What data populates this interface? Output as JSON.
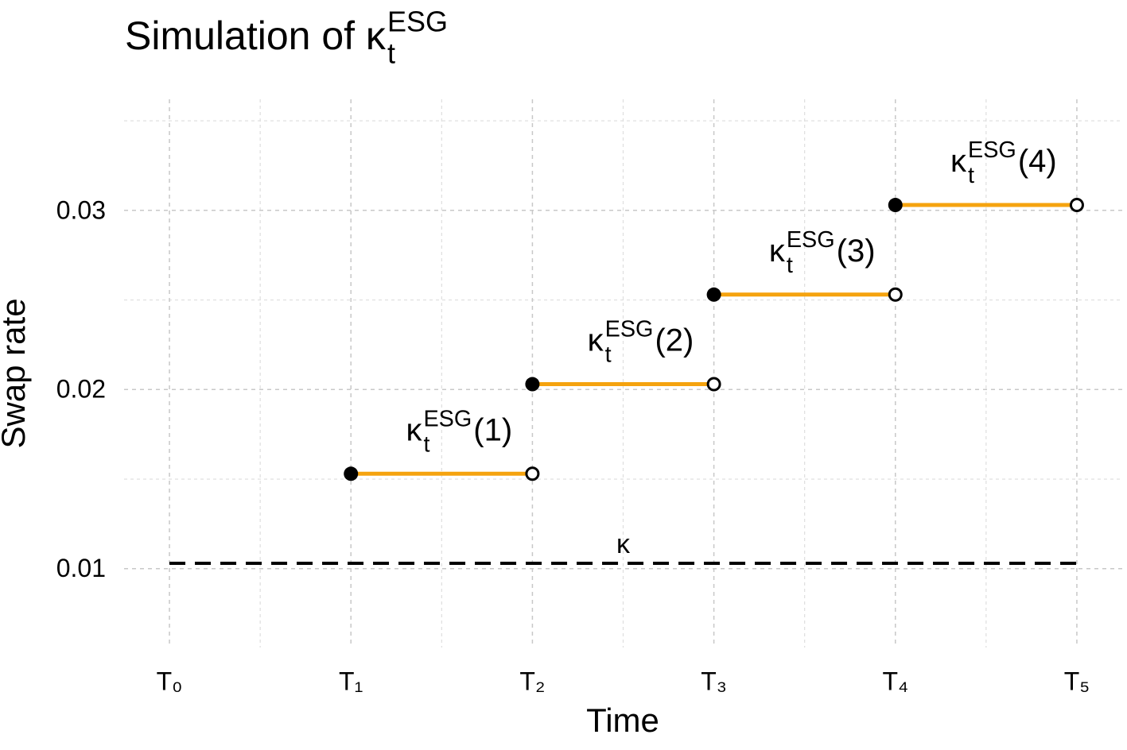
{
  "chart_data": {
    "type": "segment",
    "title": {
      "text": "Simulation of κ",
      "sub": "t",
      "sup": "ESG"
    },
    "xlabel": "Time",
    "ylabel": "Swap rate",
    "xlim": [
      -0.25,
      5.25
    ],
    "ylim": [
      0.0056,
      0.0362
    ],
    "xticks": [
      {
        "value": 0,
        "label": "T₀"
      },
      {
        "value": 1,
        "label": "T₁"
      },
      {
        "value": 2,
        "label": "T₂"
      },
      {
        "value": 3,
        "label": "T₃"
      },
      {
        "value": 4,
        "label": "T₄"
      },
      {
        "value": 5,
        "label": "T₅"
      }
    ],
    "xminor": [
      0.5,
      1.5,
      2.5,
      3.5,
      4.5
    ],
    "yticks": [
      0.01,
      0.02,
      0.03
    ],
    "yminor": [
      0.015,
      0.025,
      0.035
    ],
    "grid": true,
    "series": [
      {
        "color": "#f5a30f",
        "x_start": [
          1,
          2,
          3,
          4
        ],
        "x_end": [
          2,
          3,
          4,
          5
        ],
        "values": [
          0.0153,
          0.0203,
          0.0253,
          0.0303
        ],
        "labels": [
          {
            "base": "κ",
            "sub": "t",
            "sup": "ESG",
            "suffix": "(1)"
          },
          {
            "base": "κ",
            "sub": "t",
            "sup": "ESG",
            "suffix": "(2)"
          },
          {
            "base": "κ",
            "sub": "t",
            "sup": "ESG",
            "suffix": "(3)"
          },
          {
            "base": "κ",
            "sub": "t",
            "sup": "ESG",
            "suffix": "(4)"
          }
        ]
      }
    ],
    "reference": {
      "label": "κ",
      "value": 0.0103,
      "x_start": 0,
      "x_end": 5,
      "color": "#000000"
    }
  }
}
